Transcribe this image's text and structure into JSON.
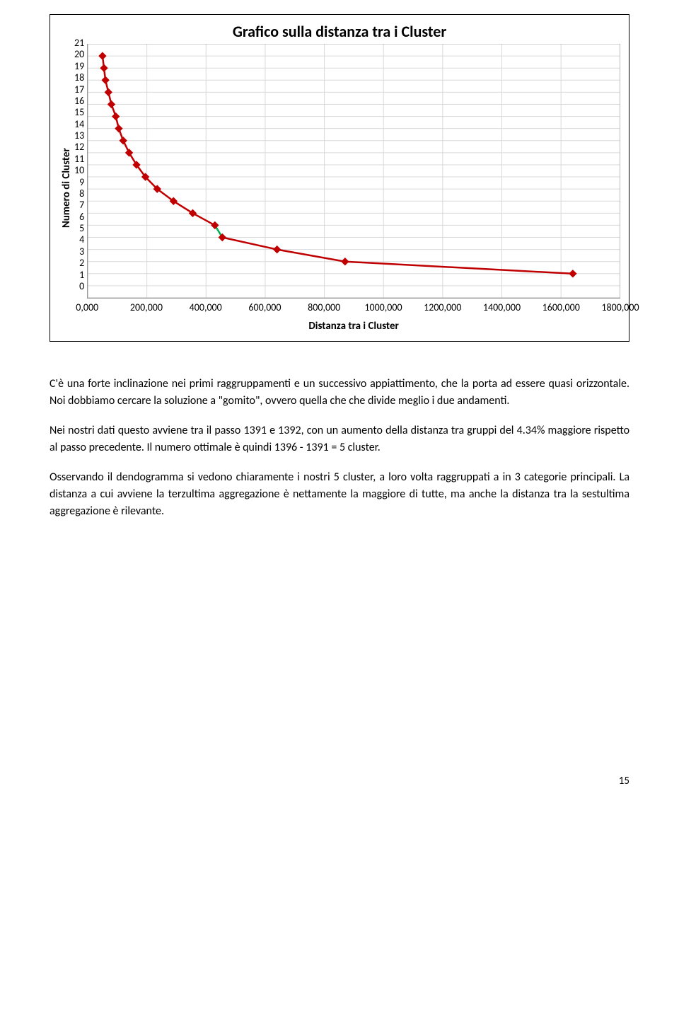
{
  "chart": {
    "title": "Grafico sulla distanza tra i Cluster",
    "y_label": "Numero di Cluster",
    "x_label": "Distanza tra i Cluster",
    "y_ticks": [
      "21",
      "20",
      "19",
      "18",
      "17",
      "16",
      "15",
      "14",
      "13",
      "12",
      "11",
      "10",
      "9",
      "8",
      "7",
      "6",
      "5",
      "4",
      "3",
      "2",
      "1",
      "0"
    ],
    "x_ticks": [
      "0,000",
      "200,000",
      "400,000",
      "600,000",
      "800,000",
      "1000,000",
      "1200,000",
      "1400,000",
      "1600,000",
      "1800,000"
    ],
    "x_min": 0,
    "x_max": 1800,
    "y_min": 0,
    "y_max": 21,
    "data": [
      {
        "x": 50,
        "y": 20
      },
      {
        "x": 55,
        "y": 19
      },
      {
        "x": 60,
        "y": 18
      },
      {
        "x": 70,
        "y": 17
      },
      {
        "x": 80,
        "y": 16
      },
      {
        "x": 95,
        "y": 15
      },
      {
        "x": 105,
        "y": 14
      },
      {
        "x": 120,
        "y": 13
      },
      {
        "x": 140,
        "y": 12
      },
      {
        "x": 165,
        "y": 11
      },
      {
        "x": 195,
        "y": 10
      },
      {
        "x": 235,
        "y": 9
      },
      {
        "x": 290,
        "y": 8
      },
      {
        "x": 355,
        "y": 7
      },
      {
        "x": 430,
        "y": 6
      },
      {
        "x": 455,
        "y": 5
      },
      {
        "x": 640,
        "y": 4
      },
      {
        "x": 870,
        "y": 3
      },
      {
        "x": 1640,
        "y": 2
      }
    ],
    "elbow_segment": {
      "from_index": 14,
      "to_index": 15
    },
    "line_color": "#c00000",
    "elbow_color": "#00b050",
    "line_width": 2.5,
    "marker_stroke": "#c00000",
    "marker_fill": "#c00000",
    "marker_size": 5,
    "grid_color": "#d9d9d9",
    "plot_border": "#a9a9a9"
  },
  "paragraphs": [
    "C'è una forte inclinazione nei primi raggruppamenti e un successivo appiattimento, che la porta ad essere quasi orizzontale. Noi dobbiamo cercare la soluzione a \"gomito\", ovvero quella che che divide meglio i due andamenti.",
    "Nei nostri dati questo avviene tra il passo 1391 e 1392, con un aumento della distanza tra gruppi del 4.34% maggiore rispetto al passo precedente. Il numero ottimale è quindi 1396 - 1391 = 5 cluster.",
    "Osservando il dendogramma si vedono chiaramente i nostri 5 cluster, a loro volta raggruppati a in 3 categorie principali. La distanza a cui avviene la terzultima aggregazione è nettamente la maggiore di tutte, ma anche la distanza tra la sestultima aggregazione è rilevante."
  ],
  "page_number": "15"
}
